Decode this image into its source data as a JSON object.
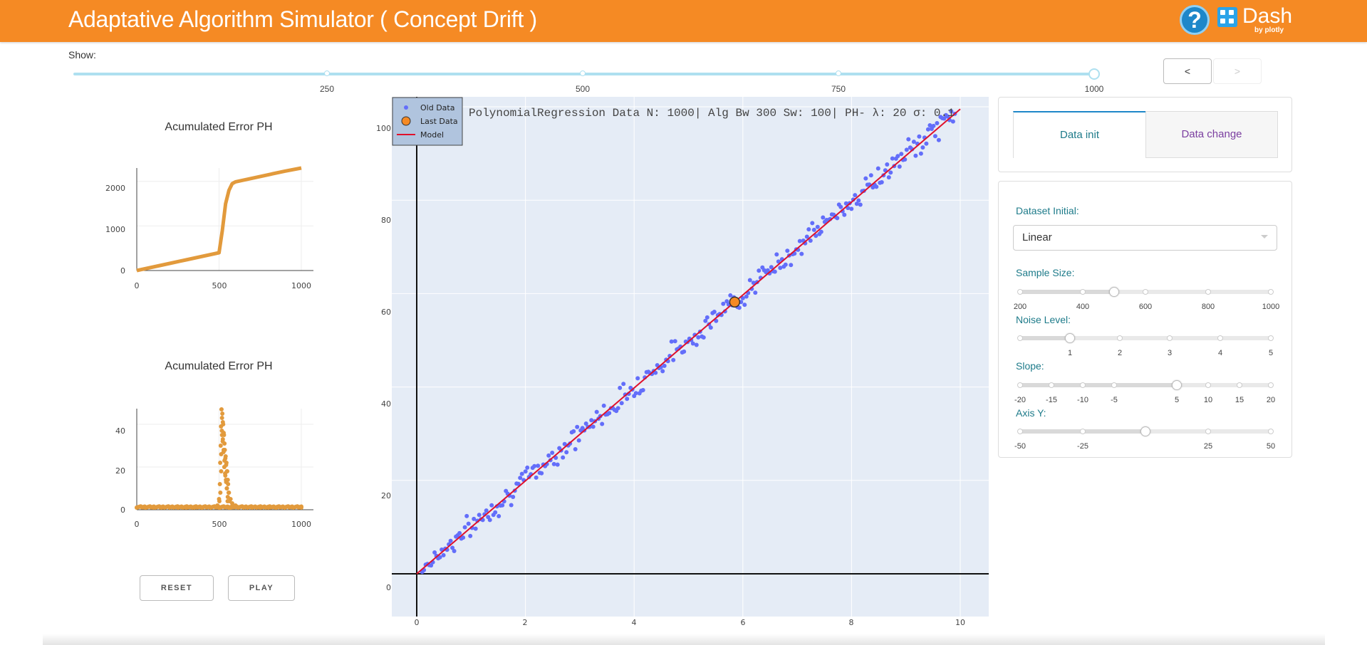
{
  "header": {
    "title": "Adaptative Algorithm Simulator ( Concept Drift )",
    "help_label": "?",
    "logo_word": "Dash",
    "logo_by": "by plotly",
    "color": "#f58a24",
    "icons": [
      "help-icon",
      "dash-logo-icon"
    ]
  },
  "show": {
    "label": "Show:",
    "marks": [
      "250",
      "500",
      "750",
      "1000"
    ],
    "value": 1000,
    "min": 1,
    "max": 1000
  },
  "nav": {
    "prev_label": "<",
    "next_label": ">"
  },
  "error_chart_1": {
    "title": "Acumulated Error PH",
    "xticks": [
      "0",
      "500",
      "1000"
    ],
    "yticks": [
      "0",
      "1000",
      "2000"
    ]
  },
  "error_chart_2": {
    "title": "Acumulated Error PH",
    "xticks": [
      "0",
      "500",
      "1000"
    ],
    "yticks": [
      "0",
      "20",
      "40"
    ]
  },
  "buttons": {
    "reset": "RESET",
    "play": "PLAY"
  },
  "main_chart": {
    "title": "PolynomialRegression Data N: 1000| Alg Bw 300 Sw: 100| PH- λ: 20 σ: 0.1",
    "legend": [
      "Old Data",
      "Last Data",
      "Model"
    ],
    "xticks": [
      "0",
      "2",
      "4",
      "6",
      "8",
      "10"
    ],
    "yticks": [
      "0",
      "20",
      "40",
      "60",
      "80",
      "100"
    ],
    "colors": {
      "old": "#636efa",
      "last": "#f58a24",
      "model": "#e0102b"
    }
  },
  "chart_data": [
    {
      "type": "line",
      "title": "Acumulated Error PH",
      "xlim": [
        0,
        1000
      ],
      "ylim": [
        0,
        2300
      ],
      "color": "#e29a3c",
      "series": [
        {
          "x": [
            0,
            100,
            200,
            300,
            400,
            500,
            520,
            540,
            560,
            580,
            600,
            700,
            800,
            900,
            1000
          ],
          "values": [
            0,
            80,
            160,
            240,
            320,
            400,
            900,
            1500,
            1800,
            1950,
            1990,
            2070,
            2150,
            2230,
            2300
          ]
        }
      ]
    },
    {
      "type": "scatter",
      "title": "Acumulated Error PH",
      "xlim": [
        0,
        1000
      ],
      "ylim": [
        0,
        50
      ],
      "color": "#e29a3c",
      "series": [
        {
          "x": [
            0,
            50,
            100,
            150,
            200,
            250,
            300,
            350,
            400,
            450,
            490,
            500,
            505,
            510,
            515,
            520,
            525,
            530,
            535,
            540,
            545,
            550,
            555,
            560,
            570,
            580,
            600,
            650,
            700,
            750,
            800,
            850,
            900,
            950,
            1000
          ],
          "values": [
            1,
            1,
            1,
            1,
            1,
            1,
            1,
            1,
            1,
            1,
            2,
            5,
            12,
            30,
            47,
            45,
            40,
            35,
            28,
            25,
            22,
            18,
            12,
            8,
            5,
            3,
            2,
            1,
            1,
            1,
            1,
            1,
            1,
            1,
            1
          ]
        }
      ]
    },
    {
      "type": "scatter",
      "title": "PolynomialRegression Data N: 1000| Alg Bw 300 Sw: 100| PH- λ: 20 σ: 0.1",
      "xlim": [
        -0.5,
        10.5
      ],
      "ylim": [
        -6,
        107
      ],
      "series": [
        {
          "name": "Old Data",
          "slope": 9.95,
          "intercept": 0.2,
          "x_range": [
            0.1,
            9.9
          ],
          "noise": 1.5
        },
        {
          "name": "Last Data",
          "x": [
            5.85
          ],
          "values": [
            58.2
          ]
        },
        {
          "name": "Model",
          "x": [
            0,
            10
          ],
          "values": [
            0,
            99.5
          ]
        }
      ]
    }
  ],
  "tabs": {
    "init": "Data init",
    "change": "Data change"
  },
  "controls": {
    "dataset_label": "Dataset Initial:",
    "dataset_value": "Linear",
    "sample_label": "Sample Size:",
    "sample_marks": [
      "200",
      "400",
      "600",
      "800",
      "1000"
    ],
    "sample_value": 500,
    "noise_label": "Noise Level:",
    "noise_marks": [
      "1",
      "2",
      "3",
      "4",
      "5"
    ],
    "noise_value": 1,
    "slope_label": "Slope:",
    "slope_marks": [
      "-20",
      "-15",
      "-10",
      "-5",
      "5",
      "10",
      "15",
      "20"
    ],
    "slope_value": 5,
    "axis_label": "Axis Y:",
    "axis_marks": [
      "-50",
      "-25",
      "25",
      "50"
    ],
    "axis_value": 0
  }
}
